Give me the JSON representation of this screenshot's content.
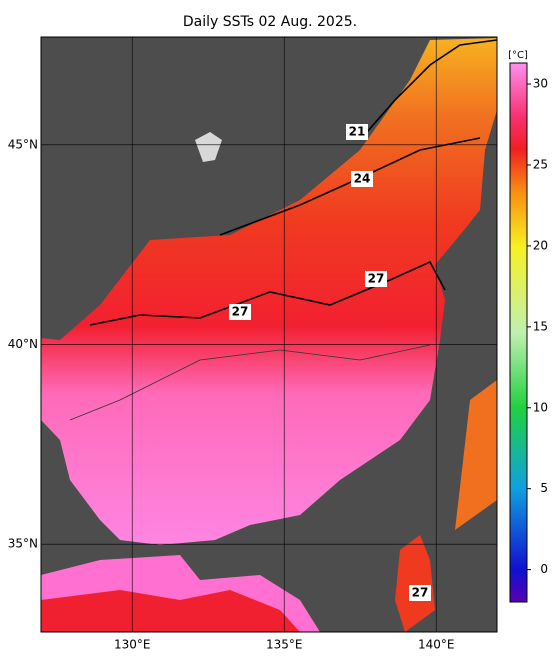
{
  "title": "Daily SSTs 02 Aug. 2025.",
  "map": {
    "lonlim": [
      127,
      142
    ],
    "latlim": [
      32.8,
      47.7
    ],
    "lon_ticks": [
      {
        "value": 130,
        "label": "130°E"
      },
      {
        "value": 135,
        "label": "135°E"
      },
      {
        "value": 140,
        "label": "140°E"
      }
    ],
    "lat_ticks": [
      {
        "value": 35,
        "label": "35°N"
      },
      {
        "value": 40,
        "label": "40°N"
      },
      {
        "value": 45,
        "label": "45°N"
      }
    ]
  },
  "contour_labels": [
    "21",
    "24",
    "27",
    "27",
    "27"
  ],
  "colorbar": {
    "unit": "[°C]",
    "lim": [
      -2,
      31.3
    ],
    "ticks": [
      0,
      5,
      10,
      15,
      20,
      25,
      30
    ]
  }
}
